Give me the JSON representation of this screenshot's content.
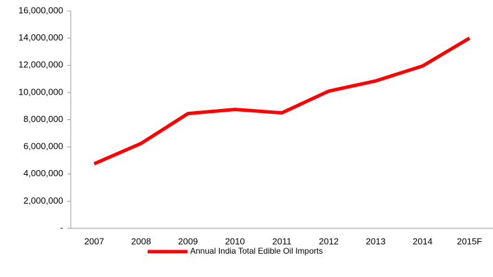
{
  "chart_data": {
    "type": "line",
    "categories": [
      "2007",
      "2008",
      "2009",
      "2010",
      "2011",
      "2012",
      "2013",
      "2014",
      "2015F"
    ],
    "series": [
      {
        "name": "Annual India Total Edible Oil Imports",
        "color": "#ff0000",
        "values": [
          4750000,
          6250000,
          8450000,
          8750000,
          8500000,
          10100000,
          10850000,
          11950000,
          14000000
        ]
      }
    ],
    "ylim": [
      0,
      16000000
    ],
    "yticks": [
      {
        "value": 0,
        "label": "-"
      },
      {
        "value": 2000000,
        "label": "2,000,000"
      },
      {
        "value": 4000000,
        "label": "4,000,000"
      },
      {
        "value": 6000000,
        "label": "6,000,000"
      },
      {
        "value": 8000000,
        "label": "8,000,000"
      },
      {
        "value": 10000000,
        "label": "10,000,000"
      },
      {
        "value": 12000000,
        "label": "12,000,000"
      },
      {
        "value": 14000000,
        "label": "14,000,000"
      },
      {
        "value": 16000000,
        "label": "16,000,000"
      }
    ],
    "grid": false,
    "legend": "bottom"
  }
}
